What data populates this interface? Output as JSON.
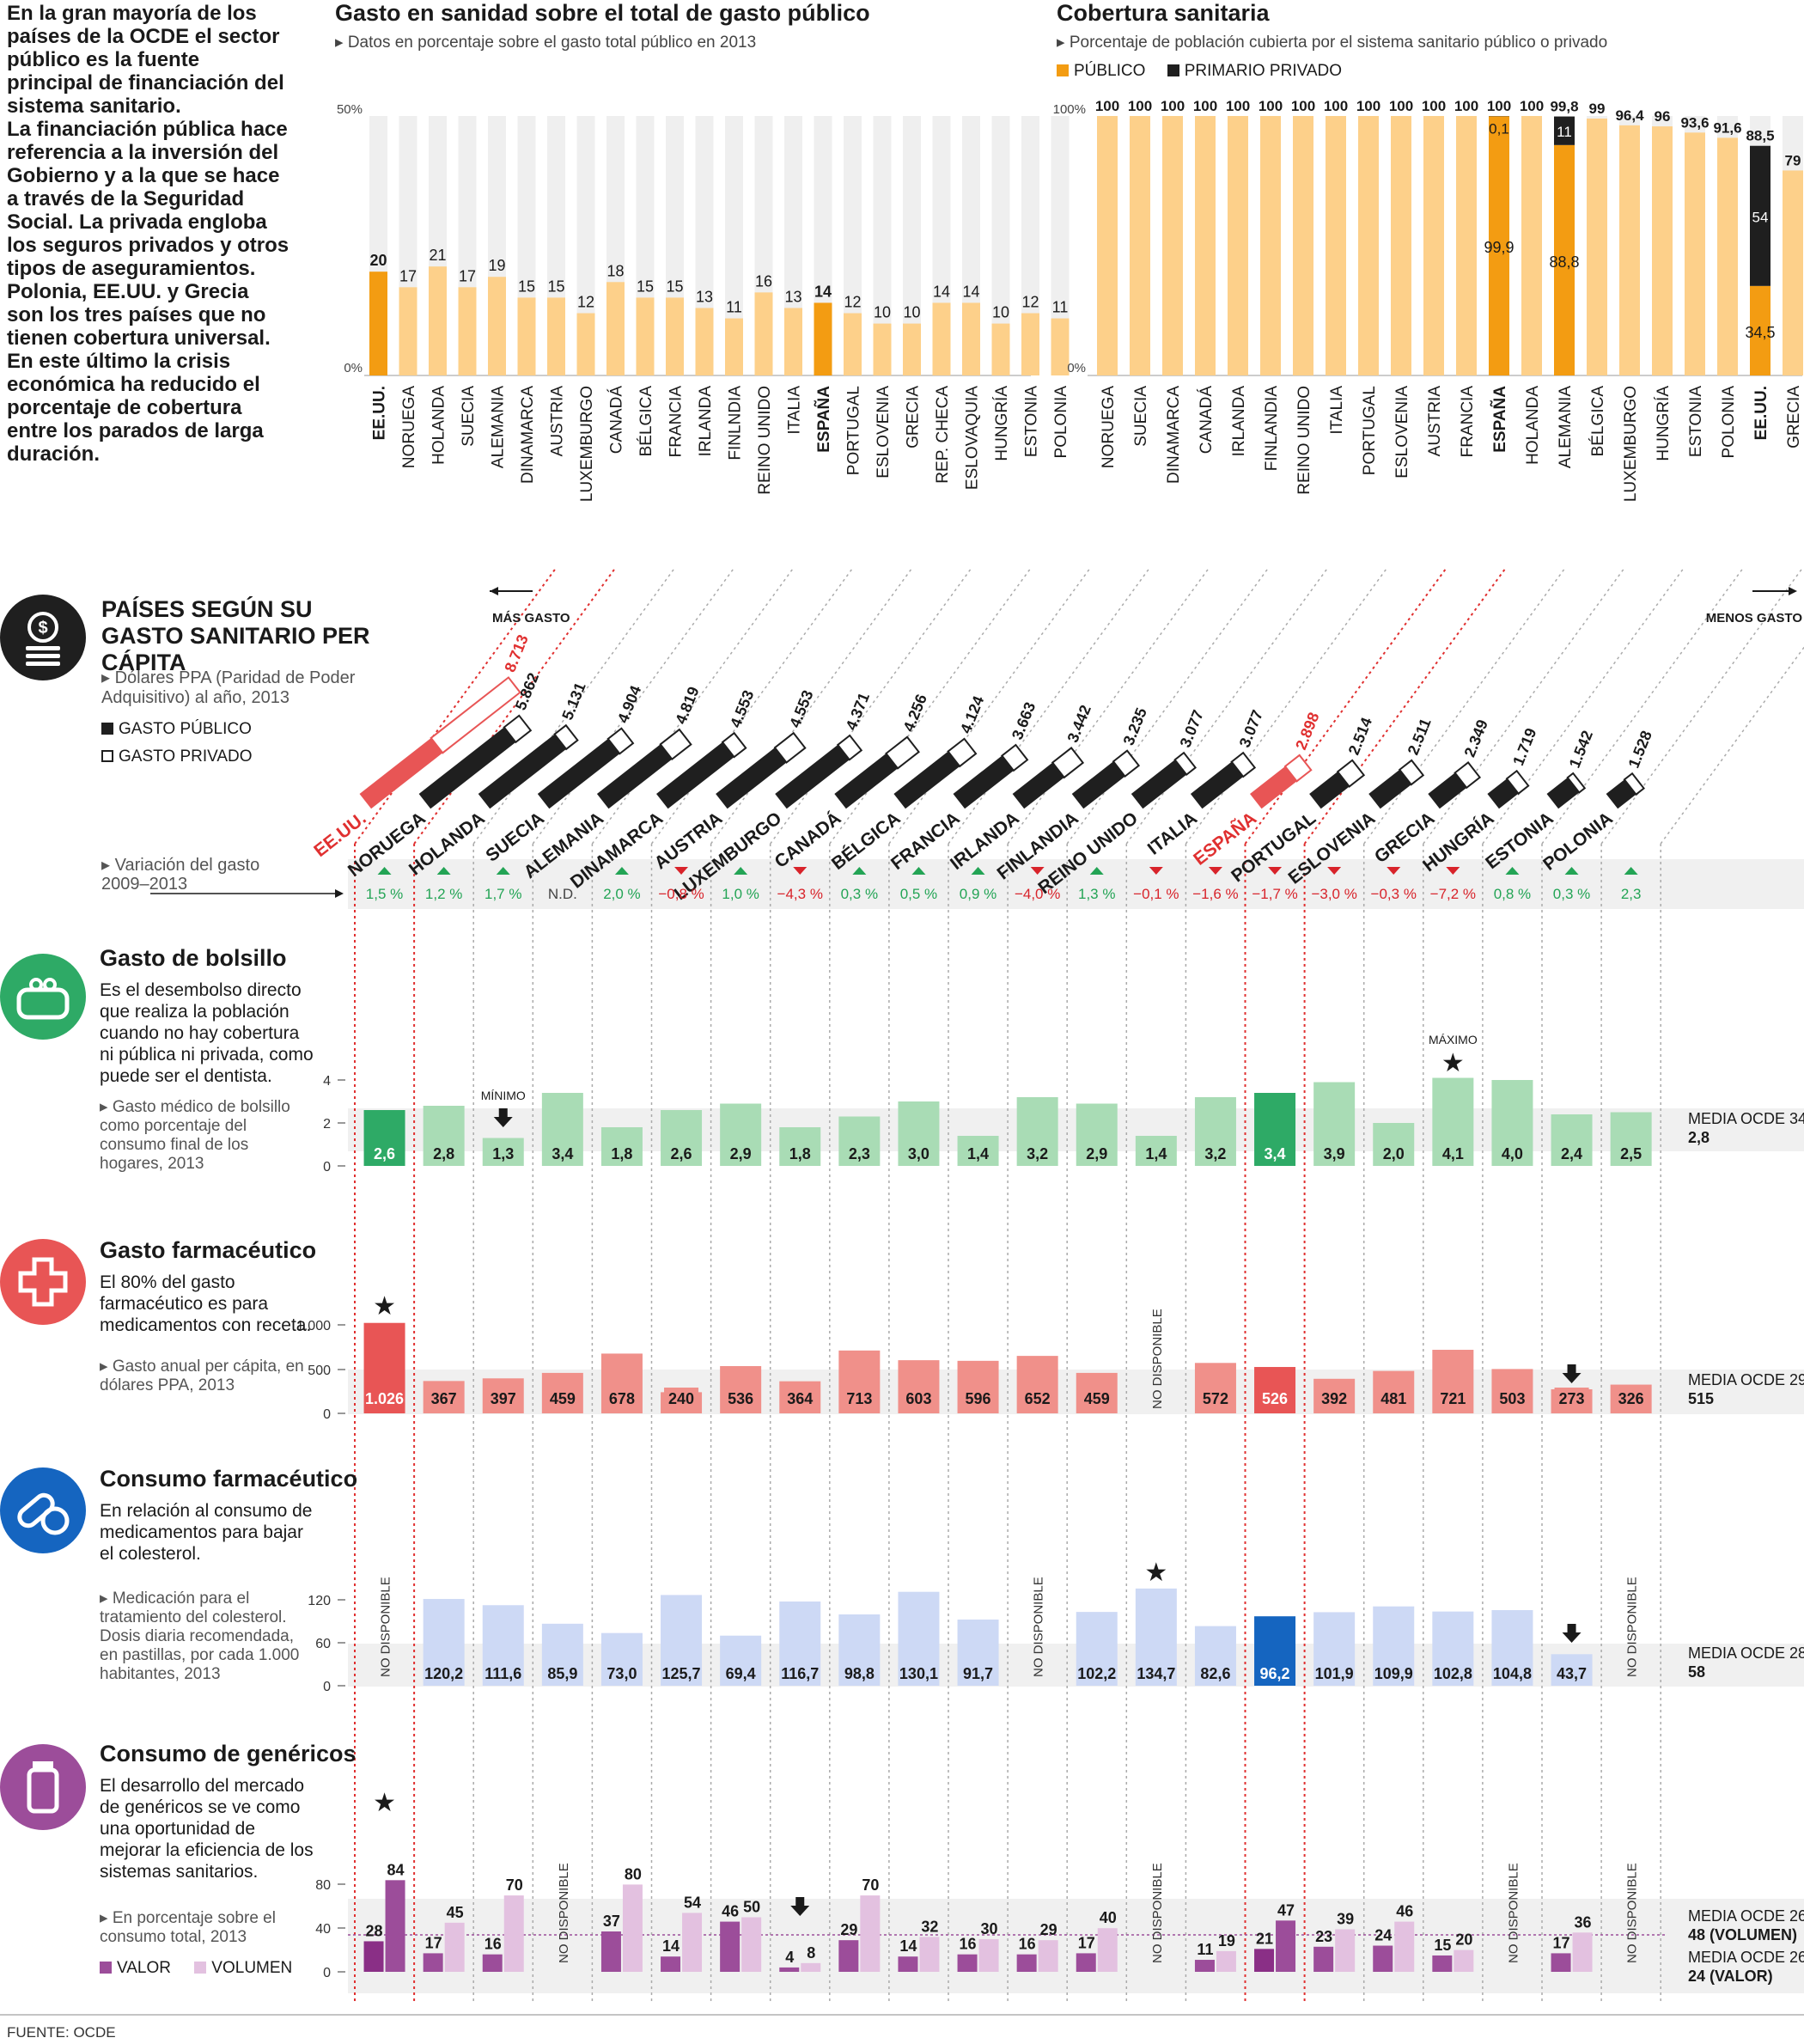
{
  "intro_text": "En la gran mayoría de los países de la OCDE el sector público es la fuente principal de financiación del sistema sanitario.\nLa financiación pública hace referencia a la inversión del Gobierno y a la que se hace a través de la Seguridad Social. La privada engloba los seguros privados y otros tipos de aseguramientos. Polonia, EE.UU. y Grecia son los tres países que no tienen cobertura universal. En este último la crisis económica ha reducido el porcentaje de cobertura entre los parados de larga duración.",
  "source": "FUENTE: OCDE",
  "colors": {
    "orange": "#f39c12",
    "light_orange": "#fdd08a",
    "dark": "#1f1f1f",
    "red": "#e85555",
    "light_red": "#f0908a",
    "green": "#2eaa66",
    "light_green": "#a9dcb5",
    "blue": "#1565c0",
    "light_blue": "#cdd9f5",
    "purple": "#9c4d9a",
    "light_purple": "#e3c1e0",
    "up": "#23a455",
    "down": "#d8232a"
  },
  "chart1": {
    "title": "Gasto en sanidad sobre el total de gasto público",
    "subtitle": "Datos en porcentaje sobre el gasto total público en 2013",
    "ymax_label": "50%",
    "ymin_label": "0%"
  },
  "chart2": {
    "title": "Cobertura sanitaria",
    "subtitle": "Porcentaje de población cubierta por el sistema sanitario público o privado",
    "legend_public": "PÚBLICO",
    "legend_private": "PRIMARIO PRIVADO",
    "ymax_label": "100%",
    "ymin_label": "0%"
  },
  "chart_data": [
    {
      "type": "bar",
      "title": "Gasto en sanidad sobre el total de gasto público",
      "ylim": [
        0,
        50
      ],
      "categories": [
        "EE.UU.",
        "NORUEGA",
        "HOLANDA",
        "SUECIA",
        "ALEMANIA",
        "DINAMARCA",
        "AUSTRIA",
        "LUXEMBURGO",
        "CANADÁ",
        "BÉLGICA",
        "FRANCIA",
        "IRLANDA",
        "FINLNDIA",
        "REINO UNIDO",
        "ITALIA",
        "ESPAÑA",
        "PORTUGAL",
        "ESLOVENIA",
        "GRECIA",
        "REP. CHECA",
        "ESLOVAQUIA",
        "HUNGRÍA",
        "ESTONIA",
        "POLONIA"
      ],
      "values": [
        20,
        17,
        21,
        17,
        19,
        15,
        15,
        12,
        18,
        15,
        15,
        13,
        11,
        16,
        13,
        14,
        12,
        10,
        10,
        14,
        14,
        10,
        12,
        11
      ],
      "highlight": [
        "EE.UU.",
        "ESPAÑA"
      ]
    },
    {
      "type": "bar",
      "title": "Cobertura sanitaria",
      "ylim": [
        0,
        100
      ],
      "categories": [
        "NORUEGA",
        "SUECIA",
        "DINAMARCA",
        "CANADÁ",
        "IRLANDA",
        "FINLANDIA",
        "REINO UNIDO",
        "ITALIA",
        "PORTUGAL",
        "ESLOVENIA",
        "AUSTRIA",
        "FRANCIA",
        "ESPAÑA",
        "HOLANDA",
        "ALEMANIA",
        "BÉLGICA",
        "LUXEMBURGO",
        "HUNGRÍA",
        "ESTONIA",
        "POLONIA",
        "EE.UU.",
        "GRECIA"
      ],
      "total": [
        100,
        100,
        100,
        100,
        100,
        100,
        100,
        100,
        100,
        100,
        100,
        100,
        100,
        100,
        99.8,
        99,
        96.4,
        96,
        93.6,
        91.6,
        88.5,
        79
      ],
      "total_labels": [
        "100",
        "100",
        "100",
        "100",
        "100",
        "100",
        "100",
        "100",
        "100",
        "100",
        "100",
        "100",
        "100",
        "100",
        "99,8",
        "99",
        "96,4",
        "96",
        "93,6",
        "91,6",
        "88,5",
        "79"
      ],
      "series": [
        {
          "name": "PÚBLICO",
          "values": [
            null,
            null,
            null,
            null,
            null,
            null,
            null,
            null,
            null,
            null,
            null,
            null,
            99.9,
            null,
            88.8,
            null,
            null,
            null,
            null,
            null,
            34.5,
            null
          ]
        },
        {
          "name": "PRIMARIO PRIVADO",
          "values": [
            null,
            null,
            null,
            null,
            null,
            null,
            null,
            null,
            null,
            null,
            null,
            null,
            0.1,
            null,
            11,
            null,
            null,
            null,
            null,
            null,
            54,
            null
          ]
        }
      ],
      "highlight": [
        "ESPAÑA",
        "ALEMANIA",
        "EE.UU."
      ]
    },
    {
      "type": "table",
      "title": "PAÍSES SEGÚN SU GASTO SANITARIO PER CÁPITA",
      "countries": [
        "EE.UU.",
        "NORUEGA",
        "HOLANDA",
        "SUECIA",
        "ALEMANIA",
        "DINAMARCA",
        "AUSTRIA",
        "LUXEMBURGO",
        "CANADÁ",
        "BÉLGICA",
        "FRANCIA",
        "IRLANDA",
        "FINLANDIA",
        "REINO UNIDO",
        "ITALIA",
        "ESPAÑA",
        "PORTUGAL",
        "ESLOVENIA",
        "GRECIA",
        "HUNGRÍA",
        "ESTONIA",
        "POLONIA"
      ],
      "per_capita": [
        "8.713",
        "5.862",
        "5.131",
        "4.904",
        "4.819",
        "4.553",
        "4.553",
        "4.371",
        "4.256",
        "4.124",
        "3.663",
        "3.442",
        "3.235",
        "3.077",
        "3.077",
        "2.898",
        "2.514",
        "2.511",
        "2.349",
        "1.719",
        "1.542",
        "1.528"
      ],
      "public_share": [
        0.48,
        0.85,
        0.87,
        0.84,
        0.77,
        0.85,
        0.76,
        0.84,
        0.71,
        0.77,
        0.78,
        0.68,
        0.75,
        0.83,
        0.78,
        0.71,
        0.66,
        0.72,
        0.67,
        0.66,
        0.79,
        0.7
      ],
      "variation": [
        "1,5 %",
        "1,2 %",
        "1,7 %",
        "N.D.",
        "2,0 %",
        "−0,8 %",
        "1,0 %",
        "−4,3 %",
        "0,3 %",
        "0,5 %",
        "0,9 %",
        "−4,0 %",
        "1,3 %",
        "−0,1 %",
        "−1,6 %",
        "−1,7 %",
        "−3,0 %",
        "−0,3 %",
        "−7,2 %",
        "0,8 %",
        "0,3 %",
        "2,3"
      ],
      "variation_dir": [
        "up",
        "up",
        "up",
        "none",
        "up",
        "down",
        "up",
        "down",
        "up",
        "up",
        "up",
        "down",
        "up",
        "down",
        "down",
        "down",
        "down",
        "down",
        "down",
        "up",
        "up",
        "up"
      ],
      "bolsillo": [
        2.6,
        2.8,
        1.3,
        3.4,
        1.8,
        2.6,
        2.9,
        1.8,
        2.3,
        3.0,
        1.4,
        3.2,
        2.9,
        1.4,
        3.2,
        3.4,
        3.9,
        2.0,
        4.1,
        4.0,
        2.4,
        2.5
      ],
      "bolsillo_labels": [
        "2,6",
        "2,8",
        "1,3",
        "3,4",
        "1,8",
        "2,6",
        "2,9",
        "1,8",
        "2,3",
        "3,0",
        "1,4",
        "3,2",
        "2,9",
        "1,4",
        "3,2",
        "3,4",
        "3,9",
        "2,0",
        "4,1",
        "4,0",
        "2,4",
        "2,5"
      ],
      "farma": [
        1026,
        367,
        397,
        459,
        678,
        240,
        536,
        364,
        713,
        603,
        596,
        652,
        459,
        null,
        572,
        526,
        392,
        481,
        721,
        503,
        273,
        326
      ],
      "farma_labels": [
        "1.026",
        "367",
        "397",
        "459",
        "678",
        "240",
        "536",
        "364",
        "713",
        "603",
        "596",
        "652",
        "459",
        "",
        "572",
        "526",
        "392",
        "481",
        "721",
        "503",
        "273",
        "326"
      ],
      "consumo": [
        null,
        120.2,
        111.6,
        85.9,
        73.0,
        125.7,
        69.4,
        116.7,
        98.8,
        130.1,
        91.7,
        null,
        102.2,
        134.7,
        82.6,
        96.2,
        101.9,
        109.9,
        102.8,
        104.8,
        43.7,
        null
      ],
      "consumo_labels": [
        "",
        "120,2",
        "111,6",
        "85,9",
        "73,0",
        "125,7",
        "69,4",
        "116,7",
        "98,8",
        "130,1",
        "91,7",
        "",
        "102,2",
        "134,7",
        "82,6",
        "96,2",
        "101,9",
        "109,9",
        "102,8",
        "104,8",
        "43,7",
        ""
      ],
      "gen_valor": [
        28,
        17,
        16,
        null,
        37,
        14,
        46,
        4,
        29,
        14,
        16,
        16,
        17,
        null,
        11,
        21,
        23,
        24,
        15,
        null,
        17,
        null
      ],
      "gen_volumen": [
        84,
        45,
        70,
        null,
        80,
        54,
        50,
        8,
        70,
        32,
        30,
        29,
        40,
        null,
        19,
        47,
        39,
        46,
        20,
        null,
        36,
        null
      ]
    }
  ],
  "section_pc": {
    "title": "PAÍSES SEGÚN SU GASTO SANITARIO PER CÁPITA",
    "note": "Dólares PPA (Paridad de Poder Adquisitivo) al año, 2013",
    "legend_public": "GASTO PÚBLICO",
    "legend_private": "GASTO PRIVADO",
    "more": "MÁS GASTO",
    "less": "MENOS GASTO"
  },
  "section_var": {
    "label": "Variación del gasto 2009–2013",
    "nd": "N.D."
  },
  "section_bolsillo": {
    "title": "Gasto de bolsillo",
    "desc": "Es el desembolso directo que realiza la población cuando no hay cobertura ni pública ni privada, como puede ser el dentista.",
    "note": "Gasto médico de bolsillo como porcentaje del consumo final de los hogares, 2013",
    "ticks": [
      "4",
      "2",
      "0"
    ],
    "min_label": "MÍNIMO",
    "max_label": "MÁXIMO",
    "mean_label": "MEDIA OCDE 34",
    "mean_value": "2,8"
  },
  "section_farma": {
    "title": "Gasto farmacéutico",
    "desc": "El 80% del gasto farmacéutico es para medicamentos con receta.",
    "note": "Gasto anual per cápita, en dólares PPA, 2013",
    "ticks": [
      "1.000",
      "500",
      "0"
    ],
    "na": "NO DISPONIBLE",
    "mean_label": "MEDIA OCDE 29",
    "mean_value": "515"
  },
  "section_consumo": {
    "title": "Consumo farmacéutico",
    "desc": "En relación al consumo de medicamentos para bajar el colesterol.",
    "note": "Medicación para el tratamiento del colesterol. Dosis diaria recomendada, en pastillas, por cada 1.000 habitantes, 2013",
    "ticks": [
      "120",
      "60",
      "0"
    ],
    "na": "NO DISPONIBLE",
    "mean_label": "MEDIA OCDE 28",
    "mean_value": "58"
  },
  "section_genericos": {
    "title": "Consumo de genéricos",
    "desc": "El desarrollo del mercado de genéricos se ve como una oportunidad de mejorar la eficiencia de los sistemas sanitarios.",
    "note": "En porcentaje sobre el consumo total, 2013",
    "legend_valor": "VALOR",
    "legend_volumen": "VOLUMEN",
    "ticks": [
      "80",
      "40",
      "0"
    ],
    "na": "NO DISPONIBLE",
    "mean_label": "MEDIA OCDE 26",
    "mean1": "48 (VOLUMEN)",
    "mean_label2": "MEDIA OCDE 26",
    "mean2": "24 (VALOR)"
  }
}
